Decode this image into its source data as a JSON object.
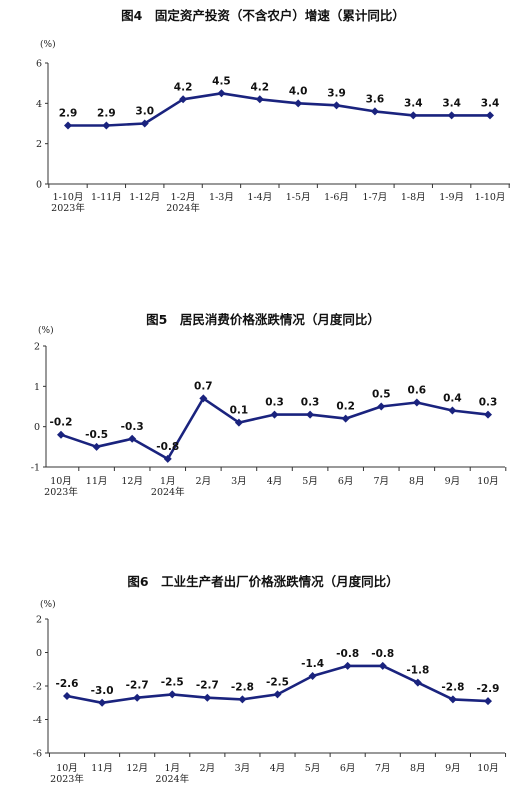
{
  "chart_data": [
    {
      "type": "line",
      "title": "图4　固定资产投资（不含农户）增速（累计同比）",
      "unit": "(%)",
      "categories": [
        "1-10月",
        "1-11月",
        "1-12月",
        "1-2月",
        "1-3月",
        "1-4月",
        "1-5月",
        "1-6月",
        "1-7月",
        "1-8月",
        "1-9月",
        "1-10月"
      ],
      "year_labels": [
        {
          "index": 0,
          "text": "2023年"
        },
        {
          "index": 3,
          "text": "2024年"
        }
      ],
      "values": [
        2.9,
        2.9,
        3.0,
        4.2,
        4.5,
        4.2,
        4.0,
        3.9,
        3.6,
        3.4,
        3.4,
        3.4
      ],
      "value_labels": [
        "2.9",
        "2.9",
        "3.0",
        "4.2",
        "4.5",
        "4.2",
        "4.0",
        "3.9",
        "3.6",
        "3.4",
        "3.4",
        "3.4"
      ],
      "yticks": [
        0,
        2,
        4,
        6
      ],
      "ytick_labels": [
        "0",
        "2",
        "4",
        "6"
      ],
      "ylim": [
        0,
        6
      ],
      "line_color": "#1a237e"
    },
    {
      "type": "line",
      "title": "图5　居民消费价格涨跌情况（月度同比）",
      "unit": "(%)",
      "categories": [
        "10月",
        "11月",
        "12月",
        "1月",
        "2月",
        "3月",
        "4月",
        "5月",
        "6月",
        "7月",
        "8月",
        "9月",
        "10月"
      ],
      "year_labels": [
        {
          "index": 0,
          "text": "2023年"
        },
        {
          "index": 3,
          "text": "2024年"
        }
      ],
      "values": [
        -0.2,
        -0.5,
        -0.3,
        -0.8,
        0.7,
        0.1,
        0.3,
        0.3,
        0.2,
        0.5,
        0.6,
        0.4,
        0.3
      ],
      "value_labels": [
        "-0.2",
        "-0.5",
        "-0.3",
        "-0.8",
        "0.7",
        "0.1",
        "0.3",
        "0.3",
        "0.2",
        "0.5",
        "0.6",
        "0.4",
        "0.3"
      ],
      "yticks": [
        -1,
        0,
        1,
        2
      ],
      "ytick_labels": [
        "-1",
        "0",
        "1",
        "2"
      ],
      "ylim": [
        -1,
        2
      ],
      "line_color": "#1a237e"
    },
    {
      "type": "line",
      "title": "图6　工业生产者出厂价格涨跌情况（月度同比）",
      "unit": "(%)",
      "categories": [
        "10月",
        "11月",
        "12月",
        "1月",
        "2月",
        "3月",
        "4月",
        "5月",
        "6月",
        "7月",
        "8月",
        "9月",
        "10月"
      ],
      "year_labels": [
        {
          "index": 0,
          "text": "2023年"
        },
        {
          "index": 3,
          "text": "2024年"
        }
      ],
      "values": [
        -2.6,
        -3.0,
        -2.7,
        -2.5,
        -2.7,
        -2.8,
        -2.5,
        -1.4,
        -0.8,
        -0.8,
        -1.8,
        -2.8,
        -2.9
      ],
      "value_labels": [
        "-2.6",
        "-3.0",
        "-2.7",
        "-2.5",
        "-2.7",
        "-2.8",
        "-2.5",
        "-1.4",
        "-0.8",
        "-0.8",
        "-1.8",
        "-2.8",
        "-2.9"
      ],
      "yticks": [
        -6,
        -4,
        -2,
        0,
        2
      ],
      "ytick_labels": [
        "-6",
        "-4",
        "-2",
        "0",
        "2"
      ],
      "ylim": [
        -6,
        2
      ],
      "line_color": "#1a237e"
    }
  ]
}
